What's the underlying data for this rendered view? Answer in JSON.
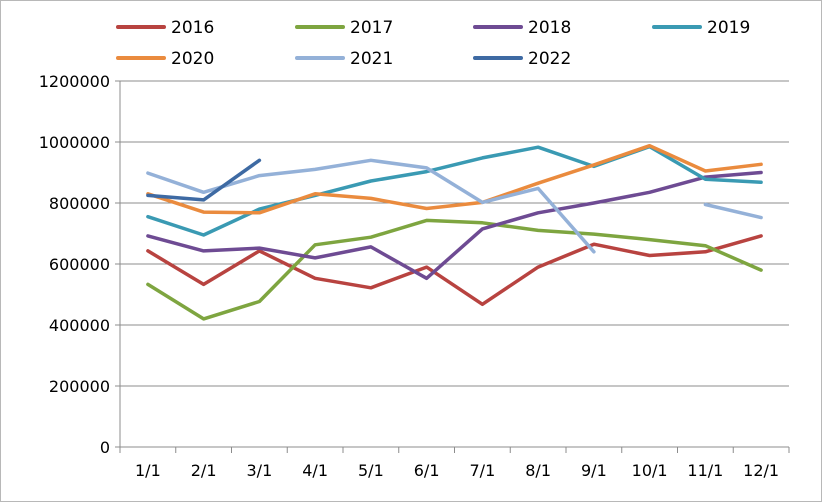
{
  "chart_data": {
    "type": "line",
    "title": "",
    "xlabel": "",
    "ylabel": "",
    "categories": [
      "1/1",
      "2/1",
      "3/1",
      "4/1",
      "5/1",
      "6/1",
      "7/1",
      "8/1",
      "9/1",
      "10/1",
      "11/1",
      "12/1"
    ],
    "ylim": [
      0,
      1200000
    ],
    "yticks": [
      0,
      200000,
      400000,
      600000,
      800000,
      1000000,
      1200000
    ],
    "ytick_labels": [
      "0",
      "200000",
      "400000",
      "600000",
      "800000",
      "1000000",
      "1200000"
    ],
    "grid": "horizontal",
    "legend_position": "top",
    "series": [
      {
        "name": "2016",
        "color": "#b84340",
        "values": [
          643000,
          533000,
          643000,
          553000,
          522000,
          590000,
          468000,
          590000,
          665000,
          628000,
          640000,
          692000
        ]
      },
      {
        "name": "2017",
        "color": "#7ea540",
        "values": [
          533000,
          420000,
          477000,
          663000,
          688000,
          743000,
          735000,
          710000,
          698000,
          680000,
          660000,
          580000
        ]
      },
      {
        "name": "2018",
        "color": "#6e4b93",
        "values": [
          692000,
          643000,
          652000,
          620000,
          656000,
          553000,
          715000,
          768000,
          800000,
          835000,
          885000,
          900000
        ]
      },
      {
        "name": "2019",
        "color": "#3a9ab3",
        "values": [
          755000,
          695000,
          780000,
          825000,
          872000,
          903000,
          948000,
          983000,
          920000,
          985000,
          878000,
          868000
        ]
      },
      {
        "name": "2020",
        "color": "#ea8b3e",
        "values": [
          830000,
          770000,
          768000,
          830000,
          815000,
          782000,
          802000,
          865000,
          925000,
          988000,
          905000,
          927000
        ]
      },
      {
        "name": "2021",
        "color": "#94b1d8",
        "values": [
          898000,
          835000,
          890000,
          910000,
          940000,
          915000,
          802000,
          848000,
          640000,
          null,
          795000,
          752000
        ]
      },
      {
        "name": "2022",
        "color": "#3e6aa3",
        "values": [
          825000,
          810000,
          940000,
          null,
          null,
          null,
          null,
          null,
          null,
          null,
          null,
          null
        ]
      }
    ]
  }
}
